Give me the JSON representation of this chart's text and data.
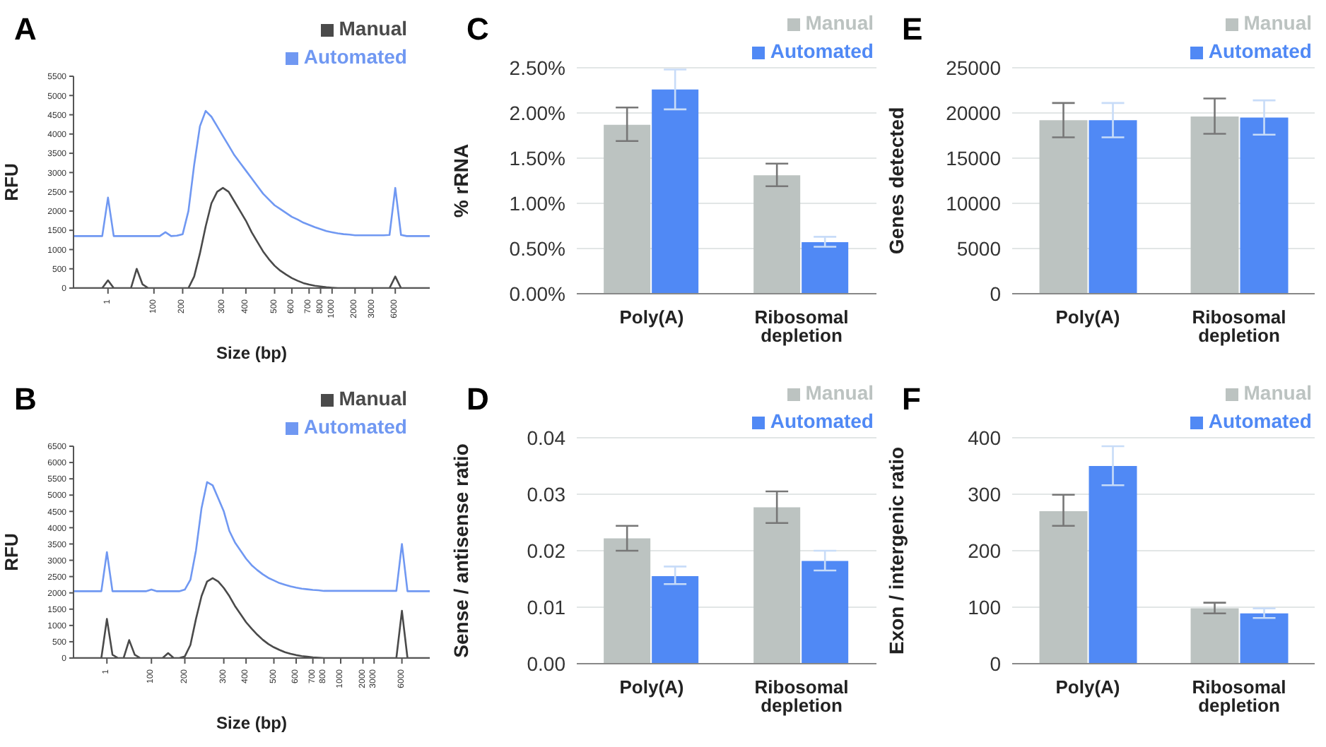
{
  "chart_data": [
    {
      "type": "line",
      "title": "A",
      "xlabel": "Size (bp)",
      "ylabel": "RFU",
      "legend": "top right",
      "marker": "none",
      "ylim": [
        0,
        5500
      ],
      "yticks": [
        0,
        500,
        1000,
        1500,
        2000,
        2500,
        3000,
        3500,
        4000,
        4500,
        5000,
        5500
      ],
      "categories": [
        null,
        null,
        null,
        null,
        null,
        null,
        "1",
        null,
        null,
        null,
        null,
        null,
        null,
        null,
        "100",
        null,
        null,
        null,
        null,
        "200",
        null,
        null,
        null,
        null,
        null,
        null,
        "300",
        null,
        null,
        null,
        "400",
        null,
        null,
        null,
        null,
        "500",
        null,
        null,
        "600",
        null,
        null,
        "700",
        null,
        "800",
        null,
        "1000",
        null,
        null,
        null,
        "2000",
        null,
        null,
        "3000",
        null,
        null,
        null,
        "6000",
        null,
        null,
        null,
        null,
        null,
        null
      ],
      "series": [
        {
          "name": "Manual",
          "color": "#4a4a4a",
          "values": [
            0,
            0,
            0,
            0,
            0,
            0,
            200,
            0,
            0,
            0,
            0,
            500,
            100,
            0,
            0,
            0,
            0,
            0,
            0,
            0,
            0,
            300,
            900,
            1600,
            2200,
            2500,
            2600,
            2500,
            2250,
            2000,
            1750,
            1450,
            1200,
            950,
            750,
            580,
            450,
            350,
            260,
            190,
            130,
            90,
            60,
            40,
            20,
            10,
            0,
            0,
            0,
            0,
            0,
            0,
            0,
            0,
            0,
            0,
            300,
            0,
            0,
            0,
            0,
            0,
            0
          ]
        },
        {
          "name": "Automated",
          "color": "#7098f2",
          "values": [
            1350,
            1350,
            1350,
            1350,
            1350,
            1350,
            2350,
            1350,
            1350,
            1350,
            1350,
            1350,
            1350,
            1350,
            1350,
            1350,
            1450,
            1350,
            1360,
            1400,
            2000,
            3200,
            4200,
            4600,
            4450,
            4200,
            3950,
            3700,
            3450,
            3250,
            3050,
            2850,
            2650,
            2450,
            2300,
            2150,
            2050,
            1950,
            1850,
            1780,
            1700,
            1640,
            1580,
            1530,
            1480,
            1450,
            1420,
            1400,
            1390,
            1370,
            1370,
            1370,
            1370,
            1370,
            1370,
            1380,
            2600,
            1380,
            1350,
            1350,
            1350,
            1350,
            1350
          ]
        }
      ]
    },
    {
      "type": "bar",
      "title": "C",
      "ylabel": "% rRNA",
      "legend": "top right",
      "grid": "y",
      "categories": [
        "Poly(A)",
        "Ribosomal depletion"
      ],
      "ylim": [
        0,
        2.5
      ],
      "yticks": [
        {
          "value": 0,
          "label": "0.00%"
        },
        {
          "value": 0.5,
          "label": "0.50%"
        },
        {
          "value": 1,
          "label": "1.00%"
        },
        {
          "value": 1.5,
          "label": "1.50%"
        },
        {
          "value": 2,
          "label": "2.00%"
        },
        {
          "value": 2.5,
          "label": "2.50%"
        }
      ],
      "series": [
        {
          "name": "Manual",
          "color": "#bcc3c1",
          "values": [
            1.87,
            1.31
          ],
          "errors": [
            [
              1.69,
              2.06
            ],
            [
              1.19,
              1.44
            ]
          ]
        },
        {
          "name": "Automated",
          "color": "#5089f5",
          "values": [
            2.26,
            0.57
          ],
          "errors": [
            [
              2.04,
              2.48
            ],
            [
              0.52,
              0.63
            ]
          ]
        }
      ]
    },
    {
      "type": "bar",
      "title": "E",
      "ylabel": "Genes detected",
      "legend": "top right",
      "grid": "y",
      "categories": [
        "Poly(A)",
        "Ribosomal depletion"
      ],
      "ylim": [
        0,
        25000
      ],
      "yticks": [
        0,
        5000,
        10000,
        15000,
        20000,
        25000
      ],
      "series": [
        {
          "name": "Manual",
          "color": "#bcc3c1",
          "values": [
            19200,
            19600
          ],
          "errors": [
            [
              17300,
              21100
            ],
            [
              17700,
              21600
            ]
          ]
        },
        {
          "name": "Automated",
          "color": "#5089f5",
          "values": [
            19200,
            19500
          ],
          "errors": [
            [
              17300,
              21100
            ],
            [
              17600,
              21400
            ]
          ]
        }
      ]
    },
    {
      "type": "line",
      "title": "B",
      "xlabel": "Size (bp)",
      "ylabel": "RFU",
      "legend": "top right",
      "marker": "none",
      "ylim": [
        0,
        6500
      ],
      "yticks": [
        0,
        500,
        1000,
        1500,
        2000,
        2500,
        3000,
        3500,
        4000,
        4500,
        5000,
        5500,
        6000,
        6500
      ],
      "categories": [
        null,
        null,
        null,
        null,
        null,
        null,
        "1",
        null,
        null,
        null,
        null,
        null,
        null,
        null,
        "100",
        null,
        null,
        null,
        null,
        null,
        "200",
        null,
        null,
        null,
        null,
        null,
        null,
        "300",
        null,
        null,
        null,
        "400",
        null,
        null,
        null,
        null,
        "500",
        null,
        null,
        null,
        "600",
        null,
        null,
        "700",
        null,
        "800",
        null,
        null,
        "1000",
        null,
        null,
        null,
        "2000",
        null,
        "3000",
        null,
        null,
        null,
        null,
        "6000",
        null,
        null,
        null,
        null,
        null
      ],
      "series": [
        {
          "name": "Manual",
          "color": "#4a4a4a",
          "values": [
            0,
            0,
            0,
            0,
            0,
            0,
            1200,
            100,
            0,
            0,
            550,
            100,
            0,
            0,
            0,
            0,
            0,
            150,
            0,
            0,
            50,
            400,
            1200,
            1900,
            2350,
            2450,
            2350,
            2150,
            1900,
            1600,
            1350,
            1100,
            900,
            720,
            560,
            430,
            330,
            250,
            180,
            130,
            90,
            60,
            40,
            20,
            10,
            0,
            0,
            0,
            0,
            0,
            0,
            0,
            0,
            0,
            0,
            0,
            0,
            0,
            0,
            1450,
            0,
            0,
            0,
            0,
            0
          ]
        },
        {
          "name": "Automated",
          "color": "#7098f2",
          "values": [
            2050,
            2050,
            2050,
            2050,
            2050,
            2050,
            3250,
            2050,
            2050,
            2050,
            2050,
            2050,
            2050,
            2050,
            2100,
            2050,
            2050,
            2050,
            2050,
            2050,
            2100,
            2400,
            3300,
            4600,
            5400,
            5300,
            4900,
            4500,
            3900,
            3550,
            3300,
            3050,
            2850,
            2700,
            2570,
            2460,
            2380,
            2300,
            2250,
            2200,
            2160,
            2130,
            2110,
            2090,
            2080,
            2060,
            2060,
            2060,
            2060,
            2060,
            2060,
            2060,
            2060,
            2060,
            2060,
            2060,
            2060,
            2060,
            2060,
            3500,
            2050,
            2050,
            2050,
            2050,
            2050
          ]
        }
      ]
    },
    {
      "type": "bar",
      "title": "D",
      "ylabel": "Sense / antisense ratio",
      "legend": "top right",
      "grid": "y",
      "categories": [
        "Poly(A)",
        "Ribosomal depletion"
      ],
      "ylim": [
        0,
        0.04
      ],
      "yticks": [
        {
          "value": 0,
          "label": "0.00"
        },
        {
          "value": 0.01,
          "label": "0.01"
        },
        {
          "value": 0.02,
          "label": "0.02"
        },
        {
          "value": 0.03,
          "label": "0.03"
        },
        {
          "value": 0.04,
          "label": "0.04"
        }
      ],
      "series": [
        {
          "name": "Manual",
          "color": "#bcc3c1",
          "values": [
            0.0222,
            0.0277
          ],
          "errors": [
            [
              0.02,
              0.0244
            ],
            [
              0.0249,
              0.0305
            ]
          ]
        },
        {
          "name": "Automated",
          "color": "#5089f5",
          "values": [
            0.0155,
            0.0182
          ],
          "errors": [
            [
              0.0141,
              0.0172
            ],
            [
              0.0165,
              0.02
            ]
          ]
        }
      ]
    },
    {
      "type": "bar",
      "title": "F",
      "ylabel": "Exon / intergenic ratio",
      "legend": "top right",
      "grid": "y",
      "categories": [
        "Poly(A)",
        "Ribosomal depletion"
      ],
      "ylim": [
        0,
        400
      ],
      "yticks": [
        0,
        100,
        200,
        300,
        400
      ],
      "series": [
        {
          "name": "Manual",
          "color": "#bcc3c1",
          "values": [
            270,
            98
          ],
          "errors": [
            [
              244,
              299
            ],
            [
              89,
              108
            ]
          ]
        },
        {
          "name": "Automated",
          "color": "#5089f5",
          "values": [
            350,
            89
          ],
          "errors": [
            [
              316,
              385
            ],
            [
              81,
              98
            ]
          ]
        }
      ]
    }
  ]
}
